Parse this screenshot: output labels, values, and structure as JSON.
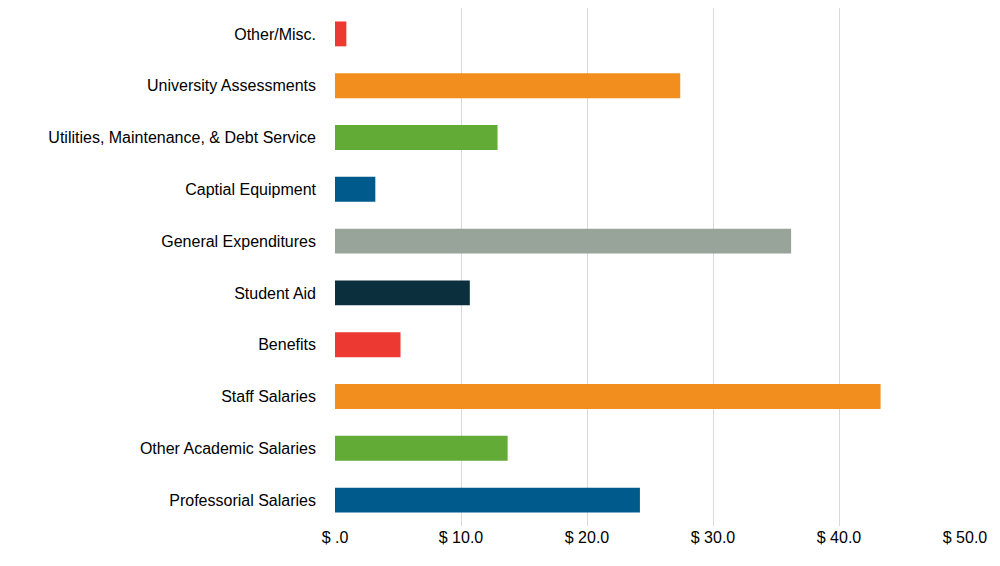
{
  "chart_data": {
    "type": "bar",
    "orientation": "horizontal",
    "categories": [
      "Other/Misc.",
      "University Assessments",
      "Utilities, Maintenance, & Debt Service",
      "Captial Equipment",
      "General Expenditures",
      "Student Aid",
      "Benefits",
      "Staff Salaries",
      "Other Academic Salaries",
      "Professorial Salaries"
    ],
    "values": [
      0.9,
      27.4,
      12.9,
      3.2,
      36.2,
      10.7,
      5.2,
      43.3,
      13.7,
      24.2
    ],
    "colors": [
      "#ec3a32",
      "#f28e1e",
      "#62ab37",
      "#005a8c",
      "#98a49a",
      "#0b2f3c",
      "#ec3a32",
      "#f28e1e",
      "#62ab37",
      "#005a8c"
    ],
    "xlim": [
      0,
      50
    ],
    "xticks": [
      {
        "value": 0,
        "label": "$ .0"
      },
      {
        "value": 10,
        "label": "$ 10.0"
      },
      {
        "value": 20,
        "label": "$ 20.0"
      },
      {
        "value": 30,
        "label": "$ 30.0"
      },
      {
        "value": 40,
        "label": "$ 40.0"
      },
      {
        "value": 50,
        "label": "$ 50.0"
      }
    ],
    "grid": true
  }
}
